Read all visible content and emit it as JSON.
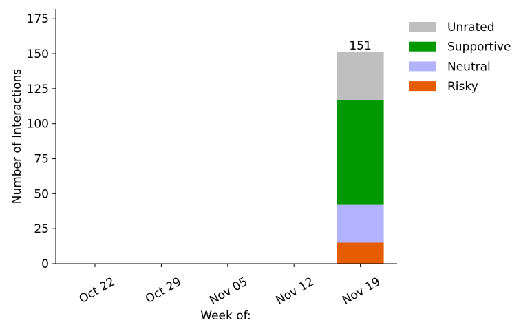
{
  "chart_data": {
    "type": "bar",
    "stacked": true,
    "categories": [
      "Oct 22",
      "Oct 29",
      "Nov 05",
      "Nov 12",
      "Nov 19"
    ],
    "series": [
      {
        "name": "Risky",
        "color": "#e65c00",
        "values": [
          0,
          0,
          0,
          0,
          15
        ]
      },
      {
        "name": "Neutral",
        "color": "#b2b2ff",
        "values": [
          0,
          0,
          0,
          0,
          27
        ]
      },
      {
        "name": "Supportive",
        "color": "#009900",
        "values": [
          0,
          0,
          0,
          0,
          75
        ]
      },
      {
        "name": "Unrated",
        "color": "#bfbfbf",
        "values": [
          0,
          0,
          0,
          0,
          34
        ]
      }
    ],
    "totals": [
      null,
      null,
      null,
      null,
      151
    ],
    "total_labels": [
      "",
      "",
      "",
      "",
      "151"
    ],
    "xlabel": "Week of:",
    "ylabel": "Number of Interactions",
    "ylim": [
      0,
      182
    ],
    "yticks": [
      "0",
      "25",
      "50",
      "75",
      "100",
      "125",
      "150",
      "175"
    ],
    "ytick_values": [
      0,
      25,
      50,
      75,
      100,
      125,
      150,
      175
    ],
    "legend_position": "top-right outside",
    "legend_order": [
      "Unrated",
      "Supportive",
      "Neutral",
      "Risky"
    ],
    "grid": false
  }
}
